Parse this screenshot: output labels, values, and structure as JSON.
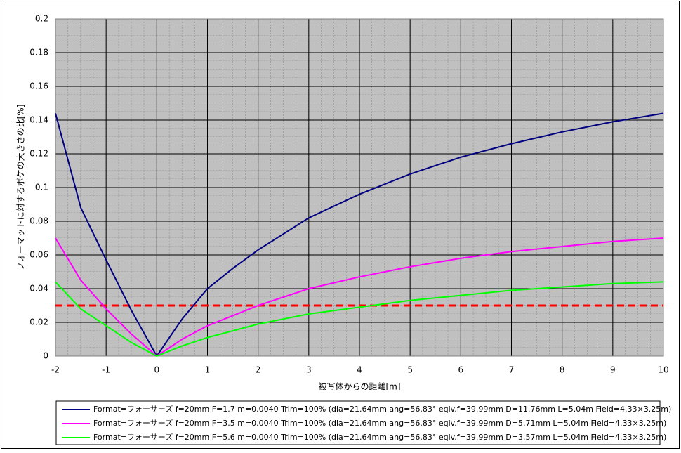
{
  "chart_data": {
    "type": "line",
    "x_label": "被写体からの距離[m]",
    "y_label": "フォーマットに対するボケの大きさの比[%]",
    "x": [
      -2,
      -1.5,
      -1,
      -0.5,
      0,
      0.5,
      1,
      1.5,
      2,
      3,
      4,
      5,
      6,
      7,
      8,
      9,
      10
    ],
    "series": [
      {
        "name": "Format=フォーサーズ f=20mm F=1.7 m=0.0040 Trim=100% (dia=21.64mm ang=56.83° eqiv.f=39.99mm D=11.76mm L=5.04m Field=4.33×3.25m)",
        "color": "#000080",
        "values": [
          0.144,
          0.088,
          0.057,
          0.027,
          0,
          0.022,
          0.04,
          0.052,
          0.063,
          0.082,
          0.096,
          0.108,
          0.118,
          0.126,
          0.133,
          0.139,
          0.144
        ]
      },
      {
        "name": "Format=フォーサーズ f=20mm F=3.5 m=0.0040 Trim=100% (dia=21.64mm ang=56.83° eqiv.f=39.99mm D=5.71mm L=5.04m Field=4.33×3.25m)",
        "color": "#ff00ff",
        "values": [
          0.07,
          0.045,
          0.028,
          0.013,
          0,
          0.01,
          0.018,
          0.024,
          0.03,
          0.04,
          0.047,
          0.053,
          0.058,
          0.062,
          0.065,
          0.068,
          0.07
        ]
      },
      {
        "name": "Format=フォーサーズ f=20mm F=5.6 m=0.0040 Trim=100% (dia=21.64mm ang=56.83° eqiv.f=39.99mm D=3.57mm L=5.04m Field=4.33×3.25m)",
        "color": "#00ff00",
        "values": [
          0.044,
          0.028,
          0.018,
          0.008,
          0,
          0.006,
          0.011,
          0.015,
          0.019,
          0.025,
          0.029,
          0.033,
          0.036,
          0.039,
          0.041,
          0.043,
          0.044
        ]
      }
    ],
    "reference_line": {
      "value": 0.03,
      "color": "#ff0000"
    },
    "xlim": [
      -2,
      10
    ],
    "xticks": [
      -2,
      -1,
      0,
      1,
      2,
      3,
      4,
      5,
      6,
      7,
      8,
      9,
      10
    ],
    "ylim": [
      0,
      0.2
    ],
    "yticks": [
      0,
      0.02,
      0.04,
      0.06,
      0.08,
      0.1,
      0.12,
      0.14,
      0.16,
      0.18,
      0.2
    ],
    "grid": true,
    "legend": "bottom"
  }
}
